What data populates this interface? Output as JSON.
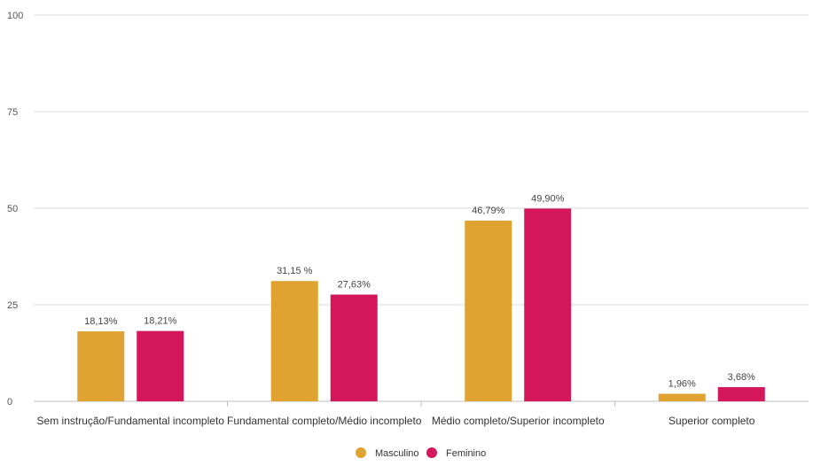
{
  "chart_data": {
    "type": "bar",
    "title": "",
    "xlabel": "",
    "ylabel": "",
    "ylim": [
      0,
      100
    ],
    "yticks": [
      0,
      25,
      50,
      75,
      100
    ],
    "grid": true,
    "legend_position": "bottom-center",
    "categories": [
      "Sem instrução/Fundamental incompleto",
      "Fundamental completo/Médio incompleto",
      "Médio completo/Superior incompleto",
      "Superior completo"
    ],
    "series": [
      {
        "name": "Masculino",
        "color": "#E0A332",
        "values": [
          18.13,
          31.15,
          46.79,
          1.96
        ],
        "labels": [
          "18,13%",
          "31,15 %",
          "46,79%",
          "1,96%"
        ]
      },
      {
        "name": "Feminino",
        "color": "#D4175A",
        "values": [
          18.21,
          27.63,
          49.9,
          3.68
        ],
        "labels": [
          "18,21%",
          "27,63%",
          "49,90%",
          "3,68%"
        ]
      }
    ]
  }
}
